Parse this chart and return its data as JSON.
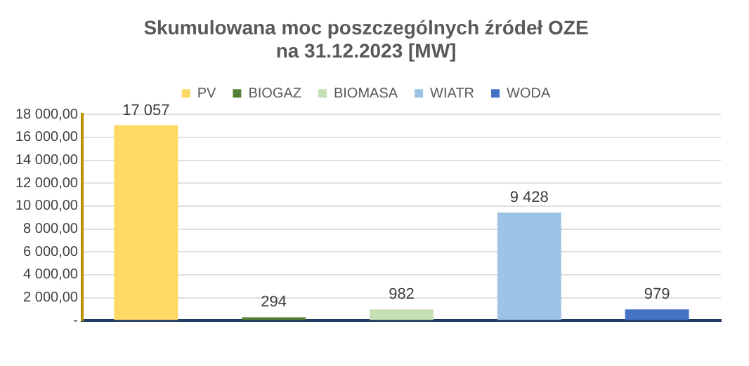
{
  "chart_data": {
    "type": "bar",
    "title": "Skumulowana moc poszczególnych źródeł OZE\nna 31.12.2023 [MW]",
    "categories": [
      null,
      null,
      null,
      null,
      null
    ],
    "series": [
      {
        "name": "PV",
        "color": "#ffd966",
        "values": [
          17057,
          null,
          null,
          null,
          null
        ],
        "value_labels": [
          "17 057",
          null,
          null,
          null,
          null
        ]
      },
      {
        "name": "BIOGAZ",
        "color": "#548235",
        "values": [
          null,
          294,
          null,
          null,
          null
        ],
        "value_labels": [
          null,
          "294",
          null,
          null,
          null
        ]
      },
      {
        "name": "BIOMASA",
        "color": "#c5e0b4",
        "values": [
          null,
          null,
          982,
          null,
          null
        ],
        "value_labels": [
          null,
          null,
          "982",
          null,
          null
        ]
      },
      {
        "name": "WIATR",
        "color": "#9dc3e6",
        "values": [
          null,
          null,
          null,
          9428,
          null
        ],
        "value_labels": [
          null,
          null,
          null,
          "9 428",
          null
        ]
      },
      {
        "name": "WODA",
        "color": "#4472c4",
        "values": [
          null,
          null,
          null,
          null,
          979
        ],
        "value_labels": [
          null,
          null,
          null,
          null,
          "979"
        ]
      }
    ],
    "ylim": [
      0,
      18000
    ],
    "yticks": [
      {
        "value": 0,
        "label": "-"
      },
      {
        "value": 2000,
        "label": "2 000,00"
      },
      {
        "value": 4000,
        "label": "4 000,00"
      },
      {
        "value": 6000,
        "label": "6 000,00"
      },
      {
        "value": 8000,
        "label": "8 000,00"
      },
      {
        "value": 10000,
        "label": "10 000,00"
      },
      {
        "value": 12000,
        "label": "12 000,00"
      },
      {
        "value": 14000,
        "label": "14 000,00"
      },
      {
        "value": 16000,
        "label": "16 000,00"
      },
      {
        "value": 18000,
        "label": "18 000,00"
      }
    ],
    "grid": "y",
    "legend": "top"
  }
}
